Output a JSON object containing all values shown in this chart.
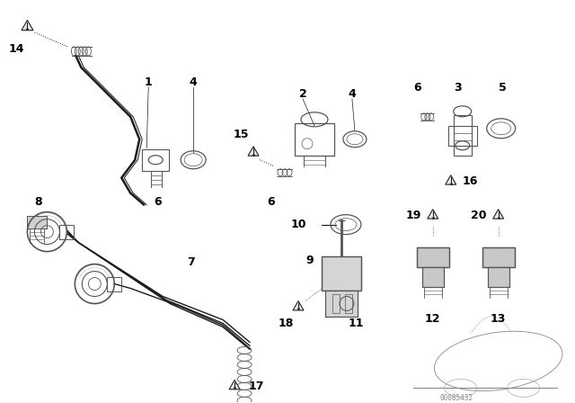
{
  "bg_color": "#ffffff",
  "line_color": "#1a1a1a",
  "label_color": "#000000",
  "watermark": "00085432",
  "fig_width": 6.4,
  "fig_height": 4.48,
  "dpi": 100
}
